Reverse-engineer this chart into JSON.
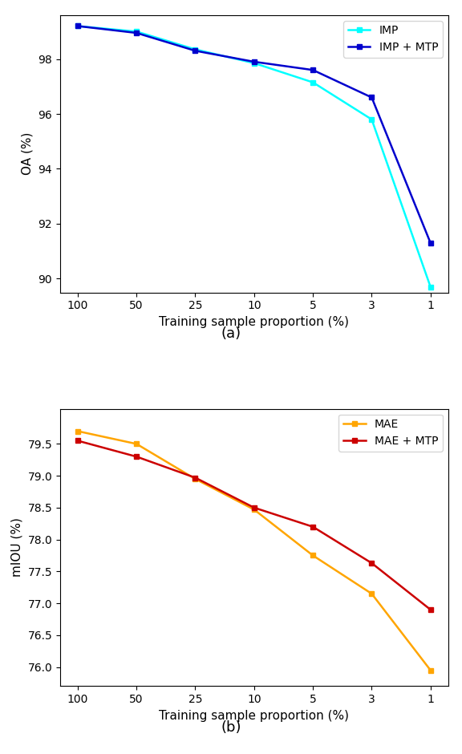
{
  "x_labels": [
    100,
    50,
    25,
    10,
    5,
    3,
    1
  ],
  "chart_a": {
    "title": "(a)",
    "ylabel": "OA (%)",
    "xlabel": "Training sample proportion (%)",
    "imp_values": [
      99.2,
      99.0,
      98.35,
      97.85,
      97.15,
      95.8,
      89.7
    ],
    "imp_mtp_values": [
      99.2,
      98.95,
      98.3,
      97.9,
      97.6,
      96.6,
      91.3
    ],
    "imp_color": "#00FFFF",
    "imp_mtp_color": "#0000CD",
    "imp_label": "IMP",
    "imp_mtp_label": "IMP + MTP",
    "ylim": [
      89.5,
      99.6
    ],
    "yticks": [
      90,
      92,
      94,
      96,
      98
    ]
  },
  "chart_b": {
    "title": "(b)",
    "ylabel": "mIOU (%)",
    "xlabel": "Training sample proportion (%)",
    "mae_values": [
      79.7,
      79.5,
      78.95,
      78.47,
      77.75,
      77.15,
      75.95
    ],
    "mae_mtp_values": [
      79.55,
      79.3,
      78.97,
      78.5,
      78.2,
      77.63,
      76.9
    ],
    "mae_color": "#FFA500",
    "mae_mtp_color": "#CC0000",
    "mae_label": "MAE",
    "mae_mtp_label": "MAE + MTP",
    "ylim": [
      75.7,
      80.05
    ],
    "yticks": [
      76.0,
      76.5,
      77.0,
      77.5,
      78.0,
      78.5,
      79.0,
      79.5
    ]
  },
  "marker": "s",
  "markersize": 5,
  "linewidth": 1.8,
  "tick_fontsize": 10,
  "label_fontsize": 11,
  "legend_fontsize": 10,
  "caption_fontsize": 13
}
